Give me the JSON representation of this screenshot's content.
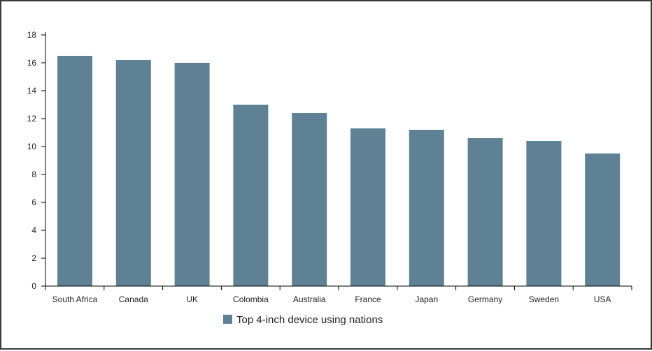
{
  "chart_data": {
    "type": "bar",
    "categories": [
      "South Africa",
      "Canada",
      "UK",
      "Colombia",
      "Australia",
      "France",
      "Japan",
      "Germany",
      "Sweden",
      "USA"
    ],
    "series": [
      {
        "name": "Top 4-inch device using nations",
        "values": [
          16.5,
          16.2,
          16.0,
          13.0,
          12.4,
          11.3,
          11.2,
          10.6,
          10.4,
          9.5
        ]
      }
    ],
    "ylim": [
      0,
      18
    ],
    "yticks": [
      0,
      2,
      4,
      6,
      8,
      10,
      12,
      14,
      16,
      18
    ],
    "grid": false,
    "legend": "bottom-center",
    "bar_color": "#5e8196",
    "title": "",
    "xlabel": "",
    "ylabel": ""
  }
}
